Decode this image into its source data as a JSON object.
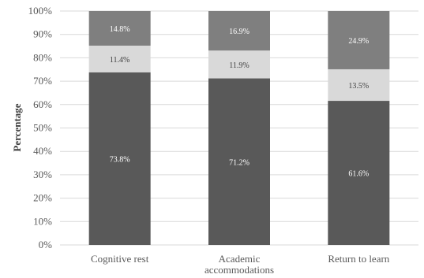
{
  "chart_data": {
    "type": "bar",
    "stacked": true,
    "orientation": "vertical",
    "categories": [
      "Cognitive rest",
      "Academic accommodations",
      "Return to learn"
    ],
    "category_display": [
      [
        "Cognitive rest"
      ],
      [
        "Academic",
        "accommodations"
      ],
      [
        "Return to learn"
      ]
    ],
    "series": [
      {
        "values": [
          73.8,
          71.2,
          61.6
        ],
        "labels": [
          "73.8%",
          "71.2%",
          "61.6%"
        ],
        "color": "#595959",
        "label_color": "#ffffff"
      },
      {
        "values": [
          11.4,
          11.9,
          13.5
        ],
        "labels": [
          "11.4%",
          "11.9%",
          "13.5%"
        ],
        "color": "#d9d9d9",
        "label_color": "#404040"
      },
      {
        "values": [
          14.8,
          16.9,
          24.9
        ],
        "labels": [
          "14.8%",
          "16.9%",
          "24.9%"
        ],
        "color": "#7f7f7f",
        "label_color": "#ffffff"
      }
    ],
    "ylabel": "Percentage",
    "xlabel": "",
    "ylim": [
      0,
      100
    ],
    "yticks": [
      "0%",
      "10%",
      "20%",
      "30%",
      "40%",
      "50%",
      "60%",
      "70%",
      "80%",
      "90%",
      "100%"
    ],
    "grid": true,
    "legend": "none"
  }
}
